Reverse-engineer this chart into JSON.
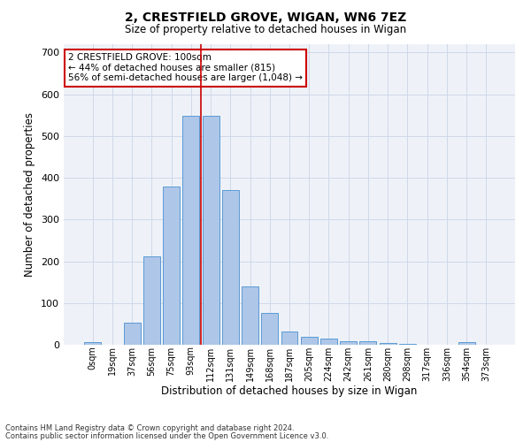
{
  "title1": "2, CRESTFIELD GROVE, WIGAN, WN6 7EZ",
  "title2": "Size of property relative to detached houses in Wigan",
  "xlabel": "Distribution of detached houses by size in Wigan",
  "ylabel": "Number of detached properties",
  "bar_labels": [
    "0sqm",
    "19sqm",
    "37sqm",
    "56sqm",
    "75sqm",
    "93sqm",
    "112sqm",
    "131sqm",
    "149sqm",
    "168sqm",
    "187sqm",
    "205sqm",
    "224sqm",
    "242sqm",
    "261sqm",
    "280sqm",
    "298sqm",
    "317sqm",
    "336sqm",
    "354sqm",
    "373sqm"
  ],
  "bar_heights": [
    7,
    0,
    52,
    212,
    380,
    548,
    548,
    370,
    140,
    77,
    32,
    20,
    15,
    8,
    8,
    5,
    3,
    0,
    0,
    7,
    0
  ],
  "bar_color": "#aec6e8",
  "bar_edge_color": "#5b9bd5",
  "annotation_text": "2 CRESTFIELD GROVE: 100sqm\n← 44% of detached houses are smaller (815)\n56% of semi-detached houses are larger (1,048) →",
  "annotation_box_color": "#ffffff",
  "annotation_box_edge": "#cc0000",
  "vline_color": "#cc0000",
  "grid_color": "#d0d8e8",
  "bg_color": "#eef2f8",
  "footer1": "Contains HM Land Registry data © Crown copyright and database right 2024.",
  "footer2": "Contains public sector information licensed under the Open Government Licence v3.0.",
  "ylim": [
    0,
    720
  ],
  "yticks": [
    0,
    100,
    200,
    300,
    400,
    500,
    600,
    700
  ]
}
